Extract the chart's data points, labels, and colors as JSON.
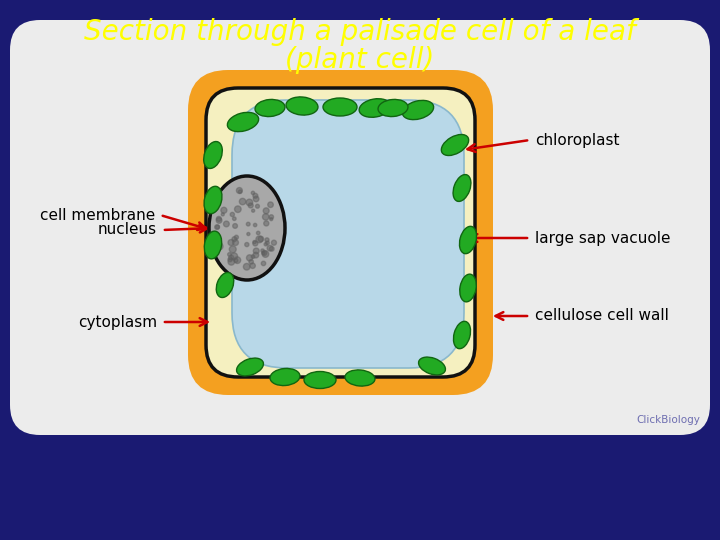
{
  "title_line1": "Section through a palisade cell of a leaf",
  "title_line2": "(plant cell)",
  "title_color": "#FFFF00",
  "bg_color": "#1a1a72",
  "white_box_color": "#ececec",
  "cell_wall_color": "#F4A020",
  "cell_inner_color": "#F5F0C0",
  "vacuole_color": "#B8D8E8",
  "nucleus_color": "#A8A8A8",
  "nucleus_border": "#111111",
  "chloroplast_color": "#22AA22",
  "chloroplast_dark": "#116611",
  "arrow_color": "#CC0000",
  "label_color": "#000000",
  "labels": {
    "cell_membrane": "cell membrane",
    "nucleus": "nucleus",
    "cytoplasm": "cytoplasm",
    "chloroplast": "chloroplast",
    "large_sap_vacuole": "large sap vacuole",
    "cellulose_cell_wall": "cellulose cell wall"
  },
  "watermark": "ClickBiology",
  "chloroplasts": [
    [
      243,
      418,
      32,
      18,
      15
    ],
    [
      213,
      385,
      28,
      17,
      70
    ],
    [
      213,
      340,
      28,
      17,
      75
    ],
    [
      213,
      295,
      28,
      17,
      80
    ],
    [
      225,
      255,
      26,
      16,
      70
    ],
    [
      270,
      432,
      30,
      17,
      5
    ],
    [
      302,
      434,
      32,
      18,
      -5
    ],
    [
      340,
      433,
      34,
      18,
      0
    ],
    [
      375,
      432,
      32,
      18,
      10
    ],
    [
      250,
      173,
      28,
      16,
      20
    ],
    [
      285,
      163,
      30,
      17,
      5
    ],
    [
      320,
      160,
      32,
      17,
      0
    ],
    [
      360,
      162,
      30,
      16,
      -5
    ],
    [
      432,
      174,
      28,
      16,
      -20
    ],
    [
      462,
      205,
      28,
      16,
      75
    ],
    [
      468,
      252,
      28,
      16,
      80
    ],
    [
      468,
      300,
      28,
      16,
      75
    ],
    [
      462,
      352,
      28,
      16,
      70
    ],
    [
      455,
      395,
      30,
      17,
      30
    ],
    [
      418,
      430,
      32,
      18,
      15
    ],
    [
      393,
      432,
      30,
      17,
      5
    ]
  ]
}
